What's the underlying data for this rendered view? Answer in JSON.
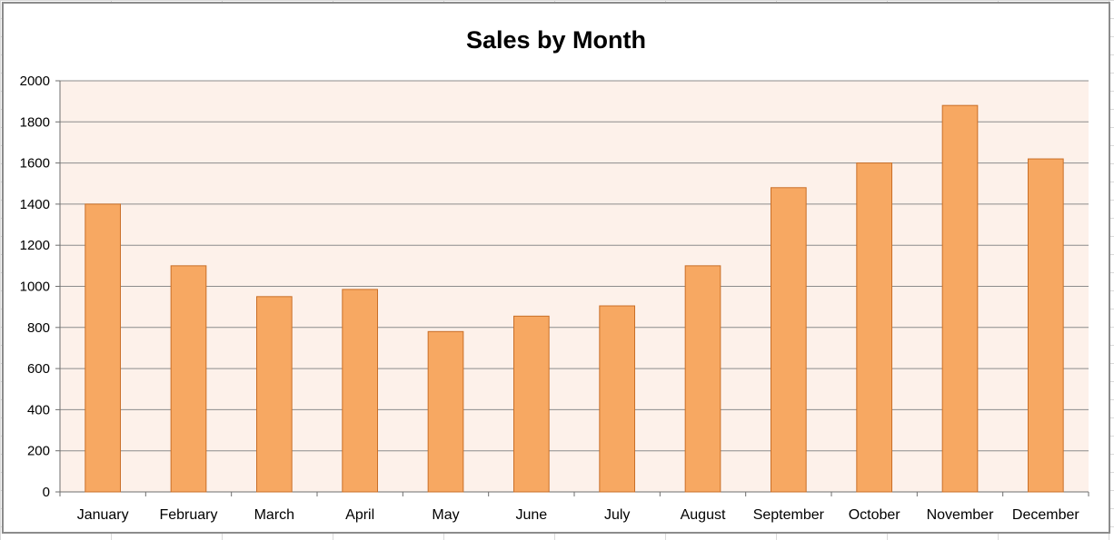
{
  "chart_data": {
    "type": "bar",
    "title": "Sales by Month",
    "xlabel": "",
    "ylabel": "",
    "categories": [
      "January",
      "February",
      "March",
      "April",
      "May",
      "June",
      "July",
      "August",
      "September",
      "October",
      "November",
      "December"
    ],
    "values": [
      1400,
      1100,
      950,
      985,
      780,
      855,
      905,
      1100,
      1480,
      1600,
      1880,
      1620
    ],
    "ylim": [
      0,
      2000
    ],
    "yticks": [
      "0",
      "200",
      "400",
      "600",
      "800",
      "1000",
      "1200",
      "1400",
      "1600",
      "1800",
      "2000"
    ],
    "grid": true,
    "legend": "none",
    "colors": {
      "bar_fill": "#f7a862",
      "bar_stroke": "#c96f28",
      "plot_bg": "#fdf1ea",
      "grid": "#8c8c8c"
    }
  }
}
